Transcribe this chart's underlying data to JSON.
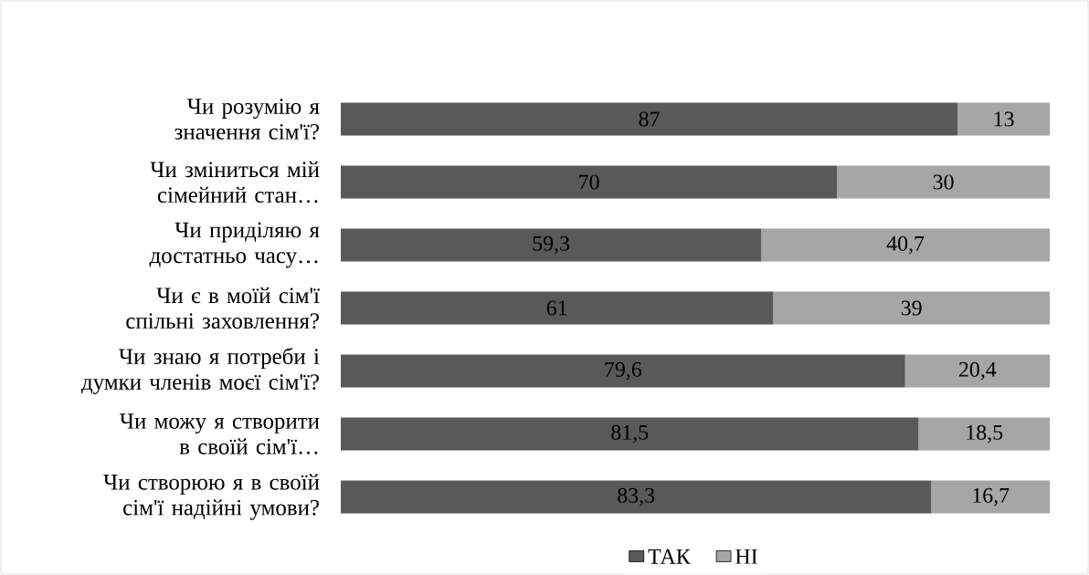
{
  "chart_data": {
    "type": "bar",
    "orientation": "horizontal",
    "stacked": true,
    "categories": [
      "Чи розумію я значення сім'ї?",
      "Чи зміниться мій сімейний стан…",
      "Чи приділяю я достатньо часу…",
      "Чи є в моїй сім'ї спільні заховлення?",
      "Чи знаю я потреби і думки членів моєї сім'ї?",
      "Чи можу я створити в своїй сім'ї…",
      "Чи створюю я в своїй сім'ї надійні умови?"
    ],
    "series": [
      {
        "name": "ТАК",
        "color": "#595959",
        "values": [
          87,
          70,
          59.3,
          61,
          79.6,
          81.5,
          83.3
        ],
        "value_labels": [
          "87",
          "70",
          "59,3",
          "61",
          "79,6",
          "81,5",
          "83,3"
        ]
      },
      {
        "name": "НІ",
        "color": "#a6a6a6",
        "values": [
          13,
          30,
          40.7,
          39,
          20.4,
          18.5,
          16.7
        ],
        "value_labels": [
          "13",
          "30",
          "40,7",
          "39",
          "20,4",
          "18,5",
          "16,7"
        ]
      }
    ],
    "xlim": [
      0,
      100
    ],
    "tick_labels": "y",
    "legend": "bottom"
  }
}
